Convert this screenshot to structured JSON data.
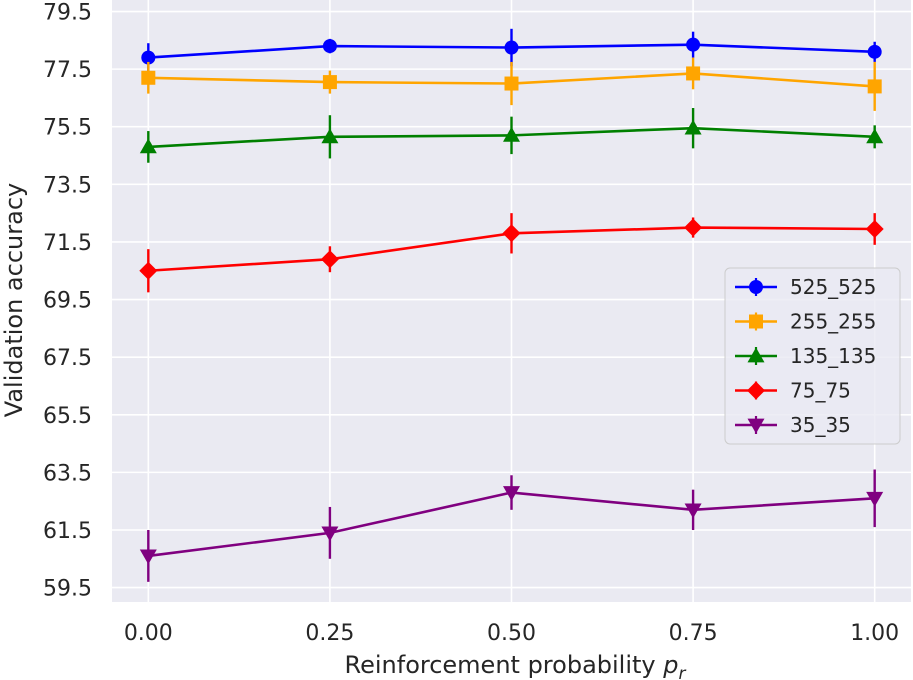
{
  "chart_data": {
    "type": "line",
    "title": "",
    "xlabel": "Reinforcement probability",
    "xlabel_symbol": "p",
    "xlabel_subscript": "r",
    "ylabel": "Validation accuracy",
    "xlim": [
      -0.05,
      1.05
    ],
    "ylim": [
      59.0,
      79.9
    ],
    "grid": true,
    "legend_position": "center-right",
    "x": [
      0.0,
      0.25,
      0.5,
      0.75,
      1.0
    ],
    "x_tick_labels": [
      "0.00",
      "0.25",
      "0.50",
      "0.75",
      "1.00"
    ],
    "y_ticks": [
      59.5,
      61.5,
      63.5,
      65.5,
      67.5,
      69.5,
      71.5,
      73.5,
      75.5,
      77.5,
      79.5
    ],
    "y_tick_labels": [
      "59.5",
      "61.5",
      "63.5",
      "65.5",
      "67.5",
      "69.5",
      "71.5",
      "73.5",
      "75.5",
      "77.5",
      "79.5"
    ],
    "series": [
      {
        "name": "525_525",
        "color": "#0000ff",
        "marker": "circle",
        "values": [
          77.9,
          78.3,
          78.25,
          78.35,
          78.1
        ],
        "errors": [
          0.5,
          0.25,
          0.65,
          0.45,
          0.35
        ]
      },
      {
        "name": "255_255",
        "color": "#ffa500",
        "marker": "square",
        "values": [
          77.2,
          77.05,
          77.0,
          77.35,
          76.9
        ],
        "errors": [
          0.55,
          0.4,
          0.75,
          0.55,
          0.85
        ]
      },
      {
        "name": "135_135",
        "color": "#008000",
        "marker": "triangle-up",
        "values": [
          74.8,
          75.15,
          75.2,
          75.45,
          75.15
        ],
        "errors": [
          0.55,
          0.75,
          0.65,
          0.7,
          0.4
        ]
      },
      {
        "name": "75_75",
        "color": "#ff0000",
        "marker": "diamond",
        "values": [
          70.5,
          70.9,
          71.8,
          72.0,
          71.95
        ],
        "errors": [
          0.75,
          0.45,
          0.7,
          0.35,
          0.55
        ]
      },
      {
        "name": "35_35",
        "color": "#800080",
        "marker": "triangle-down",
        "values": [
          60.6,
          61.4,
          62.8,
          62.2,
          62.6
        ],
        "errors": [
          0.9,
          0.9,
          0.6,
          0.7,
          1.0
        ]
      }
    ]
  },
  "colors": {
    "plot_background": "#eaeaf2",
    "grid": "#ffffff",
    "text": "#262626"
  }
}
